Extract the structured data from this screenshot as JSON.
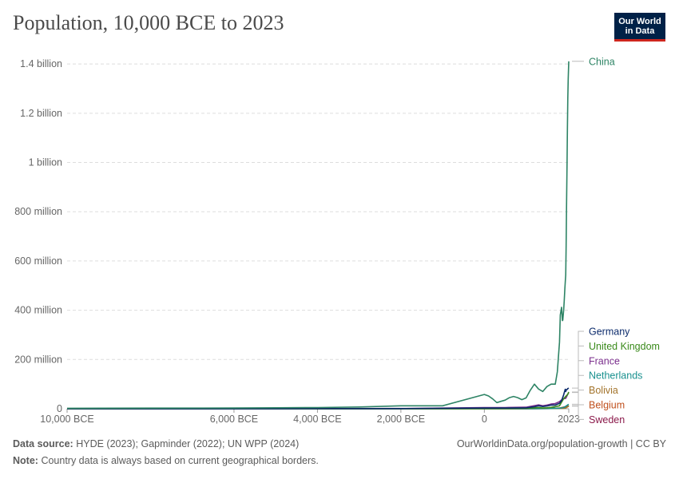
{
  "header": {
    "title": "Population, 10,000 BCE to 2023",
    "logo_line1": "Our World",
    "logo_line2": "in Data"
  },
  "footer": {
    "source_label": "Data source:",
    "source_text": "HYDE (2023); Gapminder (2022); UN WPP (2024)",
    "note_label": "Note:",
    "note_text": "Country data is always based on current geographical borders.",
    "url": "OurWorldinData.org/population-growth | CC BY"
  },
  "chart_data": {
    "type": "line",
    "title": "Population, 10,000 BCE to 2023",
    "xlabel": "",
    "ylabel": "",
    "xlim": [
      -10000,
      2023
    ],
    "ylim": [
      0,
      1420000000
    ],
    "x_ticks": [
      {
        "value": -10000,
        "label": "10,000 BCE"
      },
      {
        "value": -6000,
        "label": "6,000 BCE"
      },
      {
        "value": -4000,
        "label": "4,000 BCE"
      },
      {
        "value": -2000,
        "label": "2,000 BCE"
      },
      {
        "value": 0,
        "label": "0"
      },
      {
        "value": 2023,
        "label": "2023"
      }
    ],
    "y_ticks": [
      {
        "value": 0,
        "label": "0"
      },
      {
        "value": 200000000,
        "label": "200 million"
      },
      {
        "value": 400000000,
        "label": "400 million"
      },
      {
        "value": 600000000,
        "label": "600 million"
      },
      {
        "value": 800000000,
        "label": "800 million"
      },
      {
        "value": 1000000000,
        "label": "1 billion"
      },
      {
        "value": 1200000000,
        "label": "1.2 billion"
      },
      {
        "value": 1400000000,
        "label": "1.4 billion"
      }
    ],
    "grid": true,
    "legend": "right",
    "series": [
      {
        "name": "China",
        "color": "#2e8465",
        "x": [
          -10000,
          -8000,
          -6000,
          -5000,
          -4000,
          -3000,
          -2000,
          -1000,
          0,
          100,
          200,
          300,
          400,
          500,
          600,
          700,
          800,
          900,
          1000,
          1100,
          1200,
          1300,
          1400,
          1500,
          1600,
          1700,
          1750,
          1800,
          1820,
          1850,
          1870,
          1880,
          1900,
          1913,
          1929,
          1940,
          1950,
          1960,
          1970,
          1980,
          1990,
          2000,
          2010,
          2023
        ],
        "y": [
          2000000,
          2500000,
          3000000,
          4000000,
          5000000,
          7000000,
          12000000,
          12000000,
          58000000,
          52000000,
          40000000,
          25000000,
          30000000,
          35000000,
          45000000,
          50000000,
          45000000,
          37000000,
          44000000,
          75000000,
          100000000,
          80000000,
          70000000,
          90000000,
          100000000,
          100000000,
          150000000,
          270000000,
          381000000,
          412000000,
          358000000,
          360000000,
          400000000,
          437000000,
          487000000,
          519000000,
          543000000,
          660000000,
          818000000,
          981000000,
          1135000000,
          1262000000,
          1338000000,
          1411000000
        ]
      },
      {
        "name": "Germany",
        "color": "#0c2b6c",
        "x": [
          -10000,
          -5000,
          -2000,
          0,
          500,
          1000,
          1200,
          1300,
          1400,
          1500,
          1600,
          1700,
          1800,
          1850,
          1900,
          1913,
          1939,
          1950,
          1970,
          1990,
          2000,
          2023
        ],
        "y": [
          30000,
          200000,
          600000,
          3000000,
          3000000,
          4000000,
          8000000,
          12000000,
          9000000,
          11000000,
          15000000,
          15000000,
          22000000,
          33000000,
          56000000,
          65000000,
          79000000,
          70000000,
          78000000,
          79000000,
          82000000,
          84000000
        ]
      },
      {
        "name": "United Kingdom",
        "color": "#3a8a1b",
        "x": [
          -10000,
          -5000,
          -2000,
          0,
          500,
          1000,
          1300,
          1400,
          1500,
          1600,
          1700,
          1800,
          1850,
          1900,
          1950,
          2000,
          2023
        ],
        "y": [
          10000,
          50000,
          200000,
          1000000,
          1000000,
          2000000,
          5000000,
          3000000,
          3900000,
          5500000,
          8500000,
          12000000,
          27000000,
          41000000,
          50000000,
          59000000,
          68000000
        ]
      },
      {
        "name": "France",
        "color": "#7a2e8c",
        "x": [
          -10000,
          -5000,
          -2000,
          0,
          500,
          1000,
          1300,
          1400,
          1500,
          1600,
          1700,
          1800,
          1850,
          1900,
          1950,
          2000,
          2023
        ],
        "y": [
          50000,
          300000,
          1000000,
          5000000,
          5000000,
          6000000,
          16000000,
          12000000,
          15000000,
          19000000,
          21000000,
          29000000,
          36000000,
          41000000,
          42000000,
          59000000,
          66000000
        ]
      },
      {
        "name": "Netherlands",
        "color": "#18908e",
        "x": [
          -10000,
          0,
          1000,
          1500,
          1700,
          1800,
          1900,
          1950,
          2000,
          2023
        ],
        "y": [
          5000,
          200000,
          300000,
          950000,
          1900000,
          2100000,
          5100000,
          10000000,
          16000000,
          18000000
        ]
      },
      {
        "name": "Bolivia",
        "color": "#a3742c",
        "x": [
          -10000,
          0,
          1000,
          1500,
          1800,
          1900,
          1950,
          2000,
          2023
        ],
        "y": [
          10000,
          300000,
          700000,
          1000000,
          1200000,
          1700000,
          3100000,
          8400000,
          12300000
        ]
      },
      {
        "name": "Belgium",
        "color": "#c0501d",
        "x": [
          -10000,
          0,
          1000,
          1500,
          1700,
          1800,
          1900,
          1950,
          2000,
          2023
        ],
        "y": [
          5000,
          300000,
          400000,
          1400000,
          2000000,
          3000000,
          6700000,
          8600000,
          10300000,
          11800000
        ]
      },
      {
        "name": "Sweden",
        "color": "#8b1a4b",
        "x": [
          -10000,
          0,
          1000,
          1500,
          1700,
          1800,
          1900,
          1950,
          2000,
          2023
        ],
        "y": [
          2000,
          100000,
          300000,
          600000,
          1300000,
          2400000,
          5100000,
          7000000,
          8900000,
          10500000
        ]
      }
    ]
  }
}
